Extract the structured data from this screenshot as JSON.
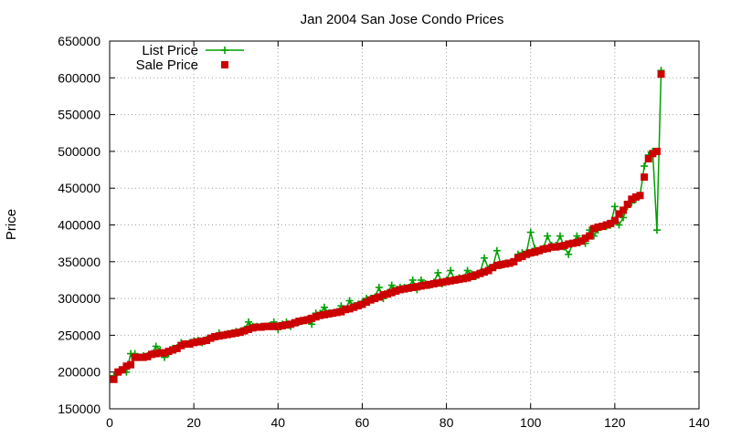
{
  "chart_data": {
    "type": "line",
    "title": "Jan 2004 San Jose Condo Prices",
    "xlabel": "",
    "ylabel": "Price",
    "xlim": [
      0,
      140
    ],
    "ylim": [
      150000,
      650000
    ],
    "xticks": [
      0,
      20,
      40,
      60,
      80,
      100,
      120,
      140
    ],
    "yticks": [
      150000,
      200000,
      250000,
      300000,
      350000,
      400000,
      450000,
      500000,
      550000,
      600000,
      650000
    ],
    "grid": true,
    "legend_position": "top-left",
    "series": [
      {
        "name": "List Price",
        "style": "line-with-plus-markers",
        "color": "#00a000",
        "x": [
          1,
          2,
          3,
          4,
          5,
          6,
          7,
          8,
          9,
          10,
          11,
          12,
          13,
          14,
          15,
          16,
          17,
          18,
          19,
          20,
          21,
          22,
          23,
          24,
          25,
          26,
          27,
          28,
          29,
          30,
          31,
          32,
          33,
          34,
          35,
          36,
          37,
          38,
          39,
          40,
          41,
          42,
          43,
          44,
          45,
          46,
          47,
          48,
          49,
          50,
          51,
          52,
          53,
          54,
          55,
          56,
          57,
          58,
          59,
          60,
          61,
          62,
          63,
          64,
          65,
          66,
          67,
          68,
          69,
          70,
          71,
          72,
          73,
          74,
          75,
          76,
          77,
          78,
          79,
          80,
          81,
          82,
          83,
          84,
          85,
          86,
          87,
          88,
          89,
          90,
          91,
          92,
          93,
          94,
          95,
          96,
          97,
          98,
          99,
          100,
          101,
          102,
          103,
          104,
          105,
          106,
          107,
          108,
          109,
          110,
          111,
          112,
          113,
          114,
          115,
          116,
          117,
          118,
          119,
          120,
          121,
          122,
          123,
          124,
          125,
          126,
          127,
          128,
          129,
          130,
          131
        ],
        "y": [
          195000,
          200000,
          203000,
          200000,
          225000,
          225000,
          220000,
          222000,
          222000,
          225000,
          235000,
          230000,
          220000,
          225000,
          232000,
          233000,
          240000,
          238000,
          240000,
          242000,
          243000,
          240000,
          244000,
          246000,
          248000,
          253000,
          250000,
          252000,
          253000,
          255000,
          255000,
          258000,
          268000,
          262000,
          262000,
          262000,
          262000,
          263000,
          268000,
          258000,
          265000,
          268000,
          262000,
          267000,
          268000,
          270000,
          272000,
          265000,
          280000,
          280000,
          288000,
          280000,
          280000,
          282000,
          290000,
          285000,
          297000,
          290000,
          292000,
          295000,
          300000,
          300000,
          302000,
          315000,
          300000,
          308000,
          318000,
          312000,
          315000,
          315000,
          315000,
          325000,
          312000,
          325000,
          320000,
          318000,
          322000,
          335000,
          320000,
          325000,
          338000,
          325000,
          328000,
          328000,
          338000,
          333000,
          330000,
          335000,
          355000,
          340000,
          342000,
          365000,
          345000,
          348000,
          348000,
          350000,
          360000,
          362000,
          362000,
          390000,
          368000,
          365000,
          368000,
          385000,
          372000,
          372000,
          385000,
          370000,
          360000,
          375000,
          385000,
          378000,
          375000,
          393000,
          385000,
          393000,
          398000,
          398000,
          400000,
          425000,
          400000,
          410000,
          425000,
          430000,
          435000,
          440000,
          480000,
          495000,
          500000,
          393000,
          610000
        ]
      },
      {
        "name": "Sale Price",
        "style": "square-markers",
        "color": "#cc0000",
        "x": [
          1,
          2,
          3,
          4,
          5,
          6,
          7,
          8,
          9,
          10,
          11,
          12,
          13,
          14,
          15,
          16,
          17,
          18,
          19,
          20,
          21,
          22,
          23,
          24,
          25,
          26,
          27,
          28,
          29,
          30,
          31,
          32,
          33,
          34,
          35,
          36,
          37,
          38,
          39,
          40,
          41,
          42,
          43,
          44,
          45,
          46,
          47,
          48,
          49,
          50,
          51,
          52,
          53,
          54,
          55,
          56,
          57,
          58,
          59,
          60,
          61,
          62,
          63,
          64,
          65,
          66,
          67,
          68,
          69,
          70,
          71,
          72,
          73,
          74,
          75,
          76,
          77,
          78,
          79,
          80,
          81,
          82,
          83,
          84,
          85,
          86,
          87,
          88,
          89,
          90,
          91,
          92,
          93,
          94,
          95,
          96,
          97,
          98,
          99,
          100,
          101,
          102,
          103,
          104,
          105,
          106,
          107,
          108,
          109,
          110,
          111,
          112,
          113,
          114,
          115,
          116,
          117,
          118,
          119,
          120,
          121,
          122,
          123,
          124,
          125,
          126,
          127,
          128,
          129,
          130,
          131
        ],
        "y": [
          190000,
          200000,
          203000,
          208000,
          210000,
          220000,
          220000,
          220000,
          221000,
          224000,
          225000,
          226000,
          226000,
          228000,
          230000,
          232000,
          236000,
          238000,
          238000,
          240000,
          241000,
          242000,
          243000,
          246000,
          248000,
          249000,
          250000,
          251000,
          252000,
          253000,
          254000,
          256000,
          258000,
          260000,
          261000,
          261000,
          262000,
          262000,
          262000,
          262000,
          263000,
          264000,
          265000,
          267000,
          269000,
          270000,
          271000,
          273000,
          275000,
          277000,
          278000,
          279000,
          280000,
          281000,
          282000,
          285000,
          286000,
          288000,
          290000,
          292000,
          295000,
          298000,
          300000,
          302000,
          305000,
          306000,
          308000,
          310000,
          312000,
          313000,
          314000,
          315000,
          316000,
          317000,
          318000,
          319000,
          320000,
          321000,
          322000,
          323000,
          324000,
          325000,
          326000,
          327000,
          328000,
          330000,
          332000,
          334000,
          336000,
          338000,
          342000,
          345000,
          346000,
          347000,
          348000,
          350000,
          355000,
          357000,
          360000,
          362000,
          363000,
          365000,
          367000,
          368000,
          370000,
          370000,
          371000,
          372000,
          374000,
          375000,
          376000,
          378000,
          382000,
          385000,
          395000,
          397000,
          398000,
          400000,
          402000,
          406000,
          415000,
          420000,
          428000,
          435000,
          438000,
          440000,
          465000,
          490000,
          497000,
          500000,
          605000
        ]
      }
    ]
  }
}
